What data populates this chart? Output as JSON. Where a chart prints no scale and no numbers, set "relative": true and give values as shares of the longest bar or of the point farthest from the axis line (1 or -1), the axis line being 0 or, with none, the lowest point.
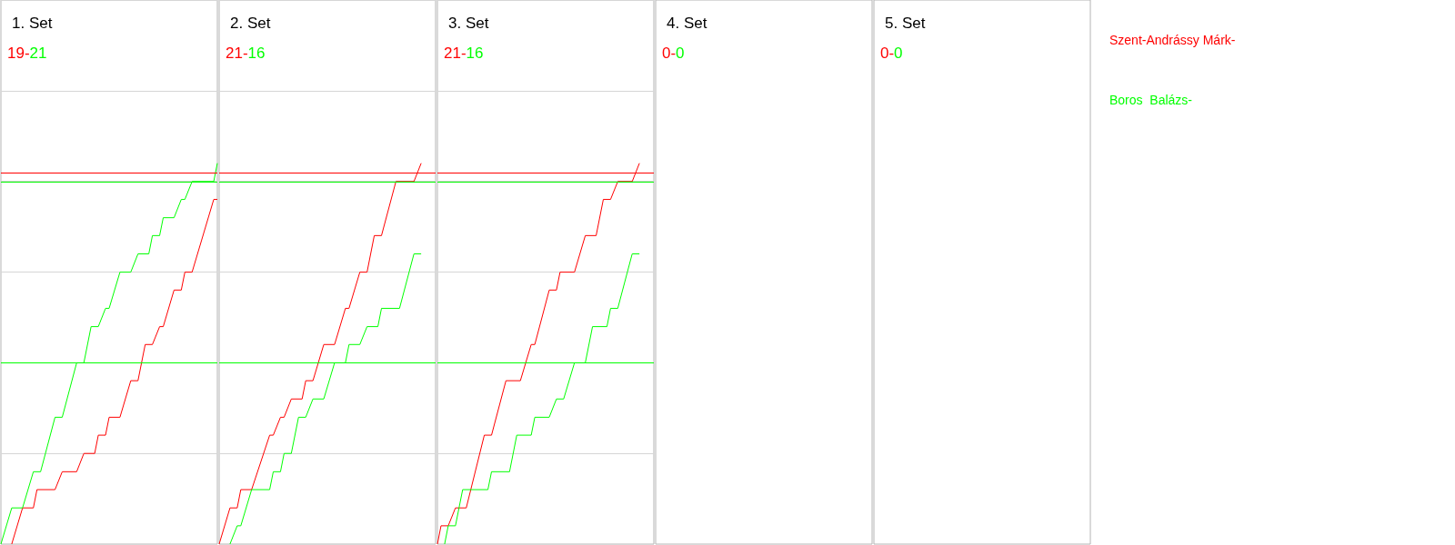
{
  "chart_data": [
    {
      "type": "line",
      "title": "1. Set",
      "annotations": [
        "19-",
        "21"
      ],
      "relative": true,
      "grid": "y",
      "legend": "right",
      "categories": [
        null,
        null,
        null,
        null,
        null,
        null,
        null,
        null,
        null,
        null,
        null,
        null,
        null,
        null,
        null,
        null,
        null,
        null,
        null,
        null,
        null,
        null,
        null,
        null,
        null,
        null,
        null,
        null,
        null,
        null,
        null,
        null,
        null,
        null,
        null,
        null,
        null,
        null,
        null,
        null,
        null,
        null,
        null,
        null,
        null,
        null,
        null,
        null,
        null,
        null,
        null,
        null,
        null,
        null,
        null,
        null,
        null,
        null,
        null,
        null,
        null
      ],
      "series": [
        {
          "name": "Szent-Andrássy Márk-",
          "color": "#ff0000",
          "values": [
            null,
            null,
            null,
            0,
            null,
            null,
            0.095,
            null,
            null,
            0.095,
            0.143,
            null,
            null,
            null,
            null,
            0.143,
            null,
            0.19,
            null,
            null,
            null,
            0.19,
            null,
            0.238,
            null,
            null,
            0.238,
            0.286,
            null,
            0.286,
            0.333,
            null,
            null,
            0.333,
            null,
            null,
            0.429,
            null,
            0.429,
            null,
            0.524,
            null,
            0.524,
            null,
            0.571,
            0.571,
            null,
            null,
            0.667,
            null,
            0.667,
            0.714,
            null,
            0.714,
            null,
            null,
            null,
            null,
            null,
            0.905,
            0.905
          ]
        },
        {
          "name": "Boros  Balázs-",
          "color": "#00ff00",
          "values": [
            0,
            null,
            null,
            0.095,
            null,
            null,
            0.095,
            null,
            null,
            0.19,
            null,
            0.19,
            null,
            null,
            null,
            0.333,
            null,
            0.333,
            null,
            null,
            null,
            0.476,
            null,
            0.476,
            null,
            0.571,
            null,
            0.571,
            null,
            0.619,
            0.619,
            null,
            null,
            0.714,
            null,
            null,
            0.714,
            null,
            0.762,
            null,
            null,
            0.762,
            0.81,
            null,
            0.81,
            0.857,
            null,
            null,
            0.857,
            null,
            0.905,
            0.905,
            null,
            0.952,
            null,
            null,
            null,
            null,
            null,
            0.952,
            1
          ]
        }
      ],
      "ref_lines": [
        {
          "axis": "y",
          "value": 0.976,
          "color": "#ff0000"
        },
        {
          "axis": "y",
          "value": 0.952,
          "color": "#00ff00"
        },
        {
          "axis": "y",
          "value": 0.476,
          "color": "#00ff00"
        }
      ]
    },
    {
      "type": "line",
      "title": "2. Set",
      "annotations": [
        "21-",
        "16"
      ],
      "relative": true,
      "grid": "y",
      "categories": [
        null,
        null,
        null,
        null,
        null,
        null,
        null,
        null,
        null,
        null,
        null,
        null,
        null,
        null,
        null,
        null,
        null,
        null,
        null,
        null,
        null,
        null,
        null,
        null,
        null,
        null,
        null,
        null,
        null,
        null,
        null,
        null,
        null,
        null,
        null,
        null,
        null,
        null,
        null,
        null,
        null,
        null,
        null,
        null,
        null,
        null,
        null,
        null,
        null,
        null,
        null,
        null,
        null,
        null,
        null,
        null,
        null,
        null,
        null,
        null,
        null
      ],
      "series": [
        {
          "color": "#ff0000",
          "values": [
            0,
            null,
            null,
            0.095,
            null,
            0.095,
            0.143,
            null,
            null,
            0.143,
            null,
            null,
            null,
            null,
            0.286,
            0.286,
            null,
            0.333,
            0.333,
            null,
            0.381,
            null,
            null,
            0.381,
            0.429,
            null,
            0.429,
            null,
            null,
            0.524,
            null,
            null,
            0.524,
            null,
            null,
            0.619,
            0.619,
            null,
            null,
            0.714,
            null,
            0.714,
            null,
            0.81,
            null,
            0.81,
            null,
            null,
            null,
            0.952,
            null,
            null,
            null,
            null,
            0.952,
            null,
            1,
            null,
            null,
            null,
            null
          ]
        },
        {
          "color": "#00ff00",
          "values": [
            null,
            null,
            null,
            0,
            null,
            0.048,
            0.048,
            null,
            null,
            0.143,
            null,
            null,
            null,
            null,
            0.143,
            0.19,
            null,
            0.19,
            0.238,
            null,
            0.238,
            null,
            0.333,
            null,
            0.333,
            null,
            0.381,
            null,
            null,
            0.381,
            null,
            null,
            0.476,
            null,
            null,
            0.476,
            0.524,
            null,
            null,
            0.524,
            null,
            0.571,
            null,
            null,
            0.571,
            0.619,
            null,
            null,
            null,
            null,
            0.619,
            null,
            null,
            null,
            0.762,
            null,
            0.762,
            null,
            null,
            null,
            null
          ]
        }
      ],
      "ref_lines": [
        {
          "axis": "y",
          "value": 0.976,
          "color": "#ff0000"
        },
        {
          "axis": "y",
          "value": 0.952,
          "color": "#00ff00"
        },
        {
          "axis": "y",
          "value": 0.476,
          "color": "#00ff00"
        }
      ]
    },
    {
      "type": "line",
      "title": "3. Set",
      "annotations": [
        "21-",
        "16"
      ],
      "relative": true,
      "grid": "y",
      "categories": [
        null,
        null,
        null,
        null,
        null,
        null,
        null,
        null,
        null,
        null,
        null,
        null,
        null,
        null,
        null,
        null,
        null,
        null,
        null,
        null,
        null,
        null,
        null,
        null,
        null,
        null,
        null,
        null,
        null,
        null,
        null,
        null,
        null,
        null,
        null,
        null,
        null,
        null,
        null,
        null,
        null,
        null,
        null,
        null,
        null,
        null,
        null,
        null,
        null,
        null,
        null,
        null,
        null,
        null,
        null,
        null,
        null,
        null,
        null,
        null,
        null
      ],
      "series": [
        {
          "color": "#ff0000",
          "values": [
            0,
            0.048,
            null,
            0.048,
            null,
            0.095,
            null,
            null,
            0.095,
            null,
            null,
            null,
            null,
            0.286,
            null,
            0.286,
            null,
            null,
            null,
            0.429,
            null,
            null,
            null,
            0.429,
            null,
            null,
            0.524,
            0.524,
            null,
            null,
            null,
            0.667,
            null,
            0.667,
            0.714,
            null,
            null,
            null,
            0.714,
            null,
            null,
            0.81,
            null,
            null,
            0.81,
            null,
            0.905,
            null,
            0.905,
            null,
            0.952,
            null,
            null,
            null,
            0.952,
            null,
            1,
            null,
            null,
            null,
            null
          ]
        },
        {
          "color": "#00ff00",
          "values": [
            null,
            null,
            0,
            0.048,
            null,
            0.048,
            null,
            0.143,
            null,
            null,
            null,
            null,
            null,
            null,
            0.143,
            0.19,
            null,
            null,
            null,
            null,
            0.19,
            null,
            0.286,
            null,
            null,
            null,
            0.286,
            0.333,
            null,
            null,
            null,
            0.333,
            null,
            0.381,
            null,
            0.381,
            null,
            null,
            0.476,
            null,
            null,
            0.476,
            null,
            0.571,
            null,
            null,
            null,
            0.571,
            0.619,
            null,
            0.619,
            null,
            null,
            null,
            0.762,
            null,
            0.762,
            null,
            null,
            null,
            null
          ]
        }
      ],
      "ref_lines": [
        {
          "axis": "y",
          "value": 0.976,
          "color": "#ff0000"
        },
        {
          "axis": "y",
          "value": 0.952,
          "color": "#00ff00"
        },
        {
          "axis": "y",
          "value": 0.476,
          "color": "#00ff00"
        }
      ]
    },
    {
      "type": "other",
      "title": "4. Set",
      "annotations": [
        "0-",
        "0"
      ]
    },
    {
      "type": "other",
      "title": "5. Set",
      "annotations": [
        "0-",
        "0"
      ]
    }
  ]
}
